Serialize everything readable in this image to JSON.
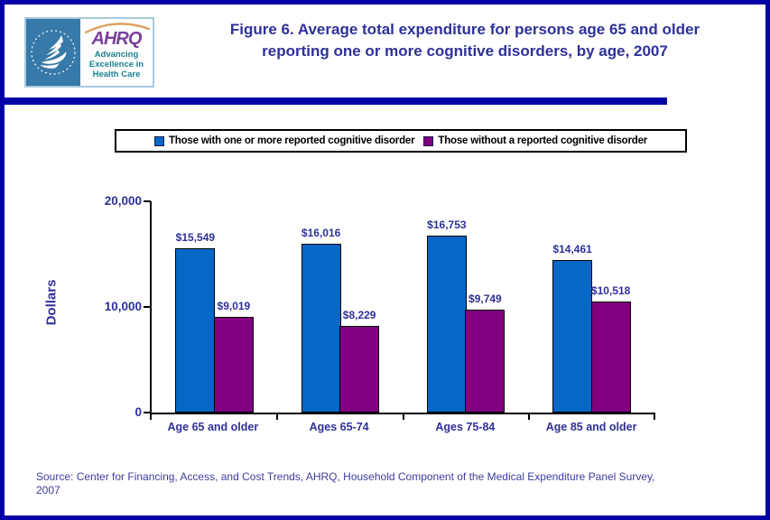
{
  "header": {
    "logo": {
      "seal_name": "hhs-department-seal",
      "ahrq_text": "AHRQ",
      "tagline_line1": "Advancing",
      "tagline_line2": "Excellence in",
      "tagline_line3": "Health Care"
    },
    "title_line1": "Figure 6. Average total expenditure for persons age 65 and older",
    "title_line2": "reporting one or more cognitive disorders, by age, 2007"
  },
  "legend": {
    "items": [
      {
        "label": "Those with one or more reported cognitive disorder",
        "color": "#0667C6"
      },
      {
        "label": "Those without a reported cognitive disorder",
        "color": "#800080"
      }
    ]
  },
  "chart_data": {
    "type": "bar",
    "title": "Figure 6. Average total expenditure for persons age 65 and older reporting one or more cognitive disorders, by age, 2007",
    "categories": [
      "Age 65 and older",
      "Ages 65-74",
      "Ages 75-84",
      "Age 85 and older"
    ],
    "series": [
      {
        "name": "Those with one or more reported cognitive disorder",
        "color": "#0667C6",
        "values": [
          15549,
          16016,
          16753,
          14461
        ],
        "labels": [
          "$15,549",
          "$16,016",
          "$16,753",
          "$14,461"
        ]
      },
      {
        "name": "Those without a reported cognitive disorder",
        "color": "#800080",
        "values": [
          9019,
          8229,
          9749,
          10518
        ],
        "labels": [
          "$9,019",
          "$8,229",
          "$9,749",
          "$10,518"
        ]
      }
    ],
    "xlabel": "",
    "ylabel": "Dollars",
    "ylim": [
      0,
      20000
    ],
    "yticks": [
      0,
      10000,
      20000
    ],
    "ytick_labels": [
      "0",
      "10,000",
      "20,000"
    ],
    "grid": false,
    "legend_position": "top"
  },
  "footer": {
    "source_line1": "Source: Center for Financing, Access, and Cost Trends, AHRQ, Household Component of the Medical Expenditure Panel Survey,",
    "source_line2": "2007"
  },
  "colors": {
    "frame_border": "#0202A8",
    "divider": "#0202A8",
    "title_text": "#2E3199",
    "axis": "#000000",
    "seal_background": "#3779A8",
    "ahrq_purple": "#7B3F9B",
    "ahrq_teal": "#1B7F8E",
    "arc_orange": "#DFA05E"
  }
}
